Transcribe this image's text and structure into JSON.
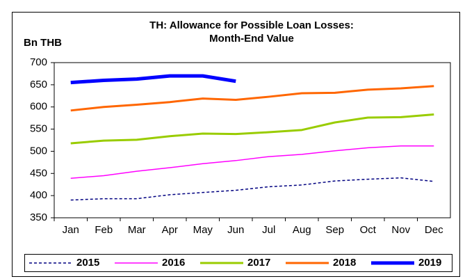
{
  "chart_data": {
    "type": "line",
    "title": [
      "TH: Allowance for Possible Loan Losses:",
      "Month-End Value"
    ],
    "y_label": "Bn THB",
    "categories": [
      "Jan",
      "Feb",
      "Mar",
      "Apr",
      "May",
      "Jun",
      "Jul",
      "Aug",
      "Sep",
      "Oct",
      "Nov",
      "Dec"
    ],
    "series": [
      {
        "name": "2015",
        "color": "#000080",
        "width": 1.5,
        "dashed": true,
        "values": [
          390,
          393,
          393,
          402,
          407,
          412,
          420,
          424,
          433,
          437,
          440,
          432
        ]
      },
      {
        "name": "2016",
        "color": "#ff00ff",
        "width": 1.5,
        "dashed": false,
        "values": [
          439,
          445,
          455,
          463,
          472,
          479,
          488,
          493,
          501,
          508,
          512,
          512
        ]
      },
      {
        "name": "2017",
        "color": "#99cc00",
        "width": 3,
        "dashed": false,
        "values": [
          518,
          524,
          526,
          534,
          540,
          539,
          543,
          548,
          565,
          576,
          577,
          583
        ]
      },
      {
        "name": "2018",
        "color": "#ff6600",
        "width": 3,
        "dashed": false,
        "values": [
          592,
          600,
          605,
          611,
          619,
          616,
          623,
          631,
          632,
          639,
          642,
          647
        ]
      },
      {
        "name": "2019",
        "color": "#0000ff",
        "width": 5,
        "dashed": false,
        "values": [
          655,
          660,
          663,
          670,
          670,
          658,
          null,
          null,
          null,
          null,
          null,
          null
        ]
      }
    ],
    "ylim": [
      350,
      700
    ],
    "yticks": [
      350,
      400,
      450,
      500,
      550,
      600,
      650,
      700
    ],
    "grid": false,
    "legend": "bottom"
  }
}
